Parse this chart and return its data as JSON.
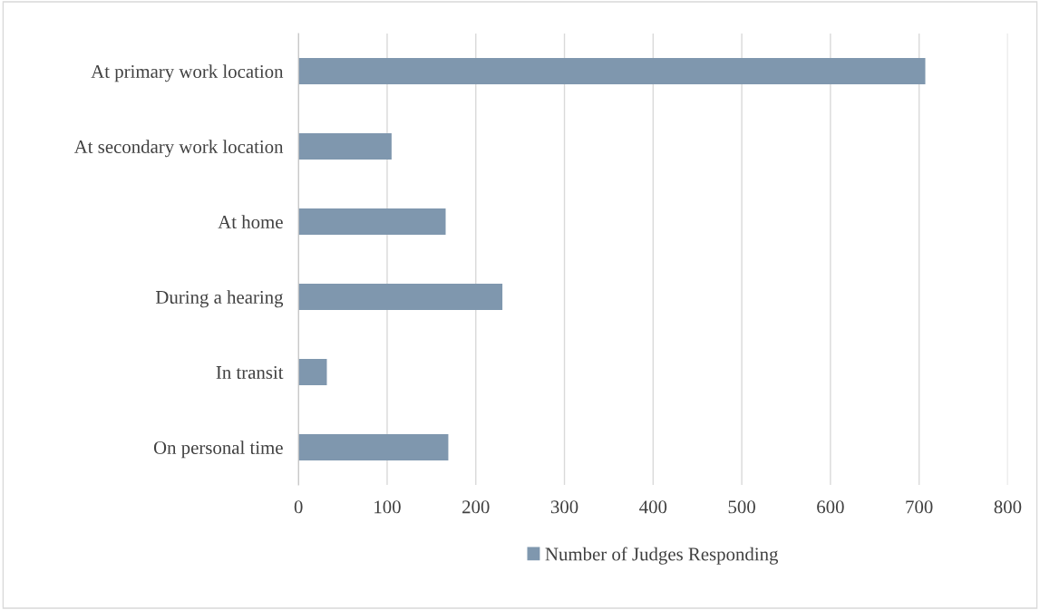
{
  "chart_data": {
    "type": "bar",
    "orientation": "horizontal",
    "categories": [
      "At primary work location",
      "At secondary work location",
      "At home",
      "During a hearing",
      "In transit",
      "On personal time"
    ],
    "series": [
      {
        "name": "Number of Judges Responding",
        "color": "#7f97ae",
        "values": [
          707,
          105,
          166,
          230,
          32,
          169
        ]
      }
    ],
    "xlim": [
      0,
      800
    ],
    "xticks": [
      0,
      100,
      200,
      300,
      400,
      500,
      600,
      700,
      800
    ],
    "grid": "x",
    "legend": "bottom"
  }
}
